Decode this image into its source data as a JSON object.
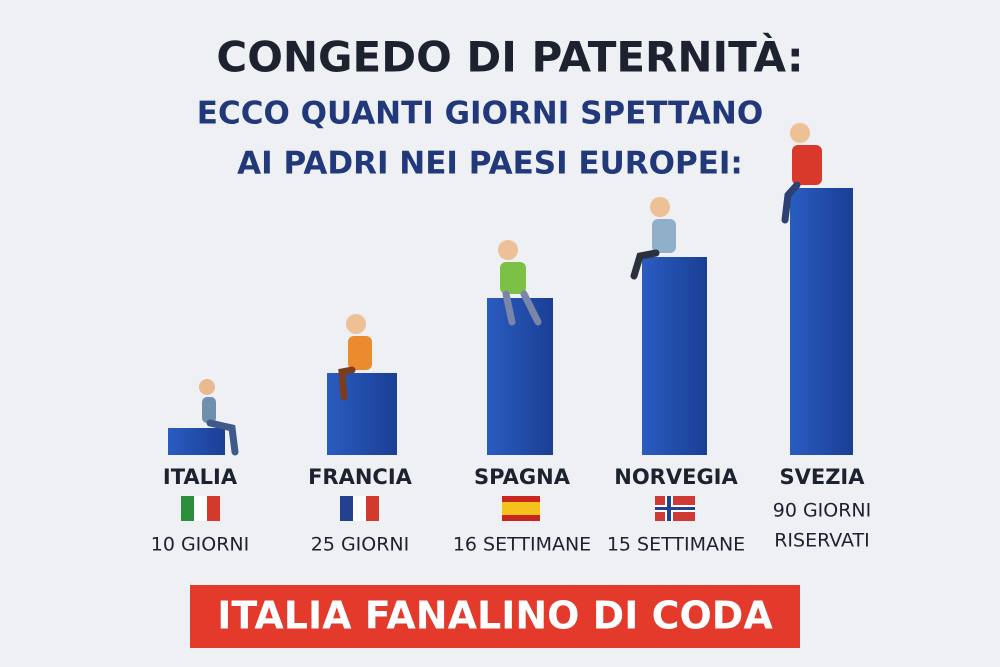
{
  "header": {
    "title": "CONGEDO DI PATERNITÀ:",
    "subtitle_lines": [
      "ECCO QUANTI GIORNI SPETTANO",
      "AI PADRI NEI PAESI EUROPEI:"
    ]
  },
  "countries": [
    {
      "name": "ITALIA",
      "label_lines": [
        "10 GIORNI"
      ]
    },
    {
      "name": "FRANCIA",
      "label_lines": [
        "25 GIORNI"
      ]
    },
    {
      "name": "SPAGNA",
      "label_lines": [
        "16 SETTIMANE"
      ]
    },
    {
      "name": "NORVEGIA",
      "label_lines": [
        "15 SETTIMANE"
      ]
    },
    {
      "name": "SVEZIA",
      "label_lines": [
        "90 GIORNI",
        "RISERVATI"
      ]
    }
  ],
  "banner": "ITALIA FANALINO DI CODA"
}
